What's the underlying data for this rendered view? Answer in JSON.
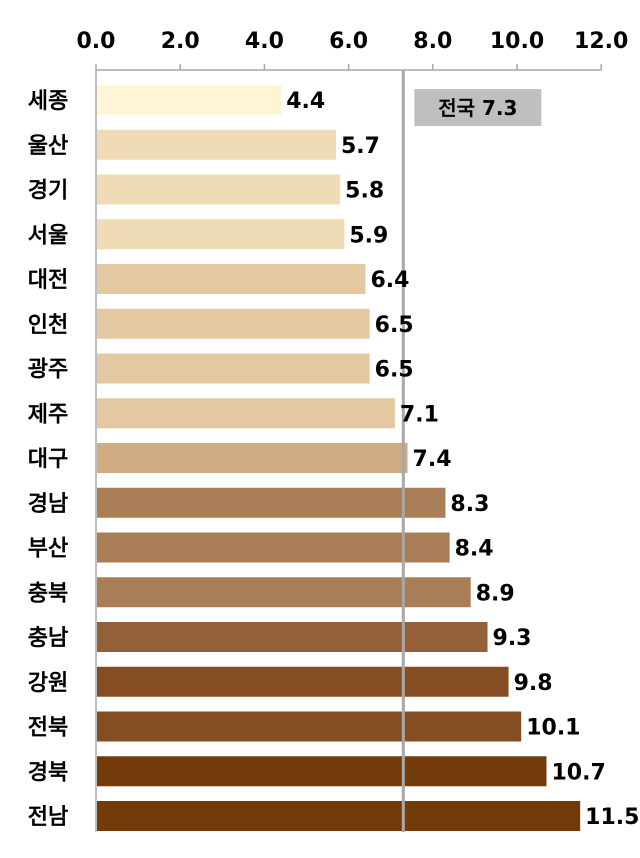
{
  "chart_data": {
    "type": "bar",
    "orientation": "horizontal",
    "title": "",
    "xlabel": "",
    "ylabel": "",
    "xlim": [
      0,
      12
    ],
    "ticks": [
      "0.0",
      "2.0",
      "4.0",
      "6.0",
      "8.0",
      "10.0",
      "12.0"
    ],
    "tick_values": [
      0,
      2,
      4,
      6,
      8,
      10,
      12
    ],
    "x_axis_position": "top",
    "grid": false,
    "categories": [
      "세종",
      "울산",
      "경기",
      "서울",
      "대전",
      "인천",
      "광주",
      "제주",
      "대구",
      "경남",
      "부산",
      "충북",
      "충남",
      "강원",
      "전북",
      "경북",
      "전남"
    ],
    "values": [
      4.4,
      5.7,
      5.8,
      5.9,
      6.4,
      6.5,
      6.5,
      7.1,
      7.4,
      8.3,
      8.4,
      8.9,
      9.3,
      9.8,
      10.1,
      10.7,
      11.5
    ],
    "value_labels": [
      "4.4",
      "5.7",
      "5.8",
      "5.9",
      "6.4",
      "6.5",
      "6.5",
      "7.1",
      "7.4",
      "8.3",
      "8.4",
      "8.9",
      "9.3",
      "9.8",
      "10.1",
      "10.7",
      "11.5"
    ],
    "colors": [
      "#fff4d6",
      "#efdcb6",
      "#efdcb6",
      "#efdcb6",
      "#e3c8a2",
      "#e3c8a2",
      "#e3c8a2",
      "#e3c8a2",
      "#cfab82",
      "#a97e56",
      "#a97e56",
      "#a97e56",
      "#93603a",
      "#854e22",
      "#854e22",
      "#733b0a",
      "#733b0a"
    ],
    "reference_line": {
      "value": 7.3,
      "label": "전국 7.3",
      "line_color": "#a8a8a8",
      "label_bg": "#bfbfbf"
    }
  }
}
